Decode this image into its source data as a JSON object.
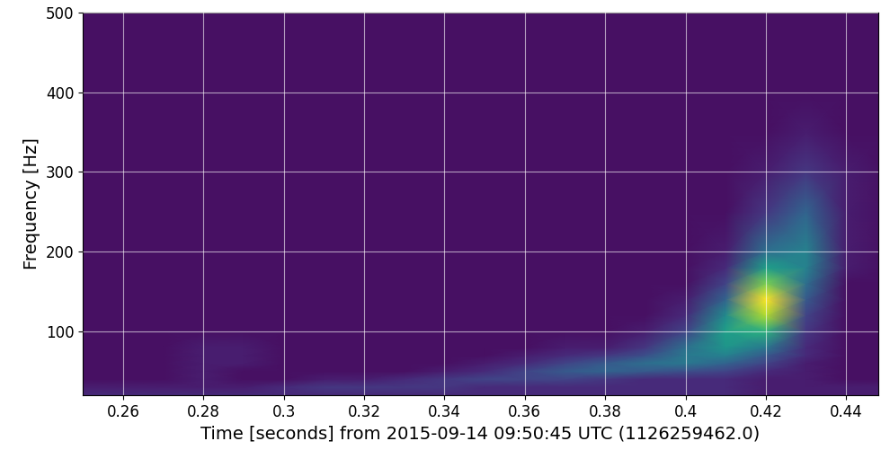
{
  "chart_data": {
    "type": "heatmap",
    "x_label": "Time [seconds] from 2015-09-14 09:50:45 UTC (1126259462.0)",
    "y_label": "Frequency [Hz]",
    "xlim": [
      0.25,
      0.448
    ],
    "ylim": [
      20,
      500
    ],
    "xticks": [
      0.26,
      0.28,
      0.3,
      0.32,
      0.34,
      0.36,
      0.38,
      0.4,
      0.42,
      0.44
    ],
    "yticks": [
      100,
      200,
      300,
      400,
      500
    ],
    "grid": true,
    "color_range": [
      0,
      25
    ],
    "x": [
      0.25,
      0.26,
      0.27,
      0.28,
      0.29,
      0.3,
      0.31,
      0.32,
      0.33,
      0.34,
      0.35,
      0.36,
      0.37,
      0.38,
      0.39,
      0.4,
      0.41,
      0.42,
      0.43,
      0.44,
      0.45
    ],
    "y": [
      20,
      30,
      40,
      50,
      60,
      70,
      80,
      100,
      120,
      140,
      160,
      180,
      200,
      250,
      300,
      350,
      400,
      450,
      500
    ],
    "values": [
      [
        3,
        3,
        3,
        3,
        3,
        3,
        3,
        3,
        3,
        3,
        3,
        3,
        3,
        3,
        3,
        3,
        3,
        2,
        2,
        2,
        2
      ],
      [
        2,
        2,
        2,
        2,
        2,
        3,
        4,
        4,
        4,
        4,
        3,
        3,
        3,
        3,
        3,
        3,
        3,
        2,
        2,
        2,
        2
      ],
      [
        1,
        1,
        1,
        2,
        1,
        1,
        2,
        2,
        3,
        4,
        5,
        5,
        5,
        4,
        3,
        3,
        3,
        2,
        2,
        1,
        1
      ],
      [
        1,
        1,
        1,
        2,
        1,
        1,
        1,
        1,
        1,
        2,
        3,
        5,
        7,
        8,
        7,
        6,
        5,
        3,
        2,
        1,
        1
      ],
      [
        1,
        1,
        1,
        2,
        2,
        1,
        1,
        1,
        1,
        1,
        2,
        3,
        5,
        7,
        9,
        10,
        8,
        5,
        2,
        1,
        1
      ],
      [
        1,
        1,
        1,
        2,
        2,
        1,
        1,
        1,
        1,
        1,
        1,
        2,
        3,
        4,
        6,
        10,
        11,
        7,
        3,
        1,
        1
      ],
      [
        1,
        1,
        1,
        2,
        2,
        1,
        1,
        1,
        1,
        1,
        1,
        1,
        2,
        2,
        4,
        9,
        13,
        10,
        3,
        1,
        1
      ],
      [
        1,
        1,
        1,
        1,
        1,
        1,
        1,
        1,
        1,
        1,
        1,
        1,
        1,
        1,
        2,
        5,
        14,
        16,
        4,
        1,
        1
      ],
      [
        1,
        1,
        1,
        1,
        1,
        1,
        1,
        1,
        1,
        1,
        1,
        1,
        1,
        1,
        1,
        3,
        12,
        22,
        5,
        1,
        1
      ],
      [
        1,
        1,
        1,
        1,
        1,
        1,
        1,
        1,
        1,
        1,
        1,
        1,
        1,
        1,
        1,
        2,
        8,
        25,
        7,
        1,
        1
      ],
      [
        1,
        1,
        1,
        1,
        1,
        1,
        1,
        1,
        1,
        1,
        1,
        1,
        1,
        1,
        1,
        1,
        5,
        20,
        9,
        1,
        1
      ],
      [
        1,
        1,
        1,
        1,
        1,
        1,
        1,
        1,
        1,
        1,
        1,
        1,
        1,
        1,
        1,
        1,
        3,
        14,
        11,
        2,
        1
      ],
      [
        1,
        1,
        1,
        1,
        1,
        1,
        1,
        1,
        1,
        1,
        1,
        1,
        1,
        1,
        1,
        1,
        2,
        9,
        11,
        2,
        1
      ],
      [
        1,
        1,
        1,
        1,
        1,
        1,
        1,
        1,
        1,
        1,
        1,
        1,
        1,
        1,
        1,
        1,
        1,
        4,
        8,
        2,
        1
      ],
      [
        1,
        1,
        1,
        1,
        1,
        1,
        1,
        1,
        1,
        1,
        1,
        1,
        1,
        1,
        1,
        1,
        1,
        2,
        4,
        2,
        1
      ],
      [
        1,
        1,
        1,
        1,
        1,
        1,
        1,
        1,
        1,
        1,
        1,
        1,
        1,
        1,
        1,
        1,
        1,
        1,
        2,
        1,
        1
      ],
      [
        1,
        1,
        1,
        1,
        1,
        1,
        1,
        1,
        1,
        1,
        1,
        1,
        1,
        1,
        1,
        1,
        1,
        1,
        1,
        1,
        1
      ],
      [
        1,
        1,
        1,
        1,
        1,
        1,
        1,
        1,
        1,
        1,
        1,
        1,
        1,
        1,
        1,
        1,
        1,
        1,
        1,
        1,
        1
      ],
      [
        1,
        1,
        1,
        1,
        1,
        1,
        1,
        1,
        1,
        1,
        1,
        1,
        1,
        1,
        1,
        1,
        1,
        1,
        1,
        1,
        1
      ]
    ]
  }
}
